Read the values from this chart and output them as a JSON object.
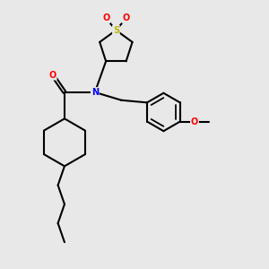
{
  "background_color": "#e8e8e8",
  "bond_color": "#000000",
  "atom_colors": {
    "S": "#b8b800",
    "O": "#ff0000",
    "N": "#0000ff",
    "C": "#000000"
  },
  "line_width": 1.5,
  "figsize": [
    3.0,
    3.0
  ],
  "dpi": 100,
  "xlim": [
    0,
    10
  ],
  "ylim": [
    0,
    10
  ]
}
